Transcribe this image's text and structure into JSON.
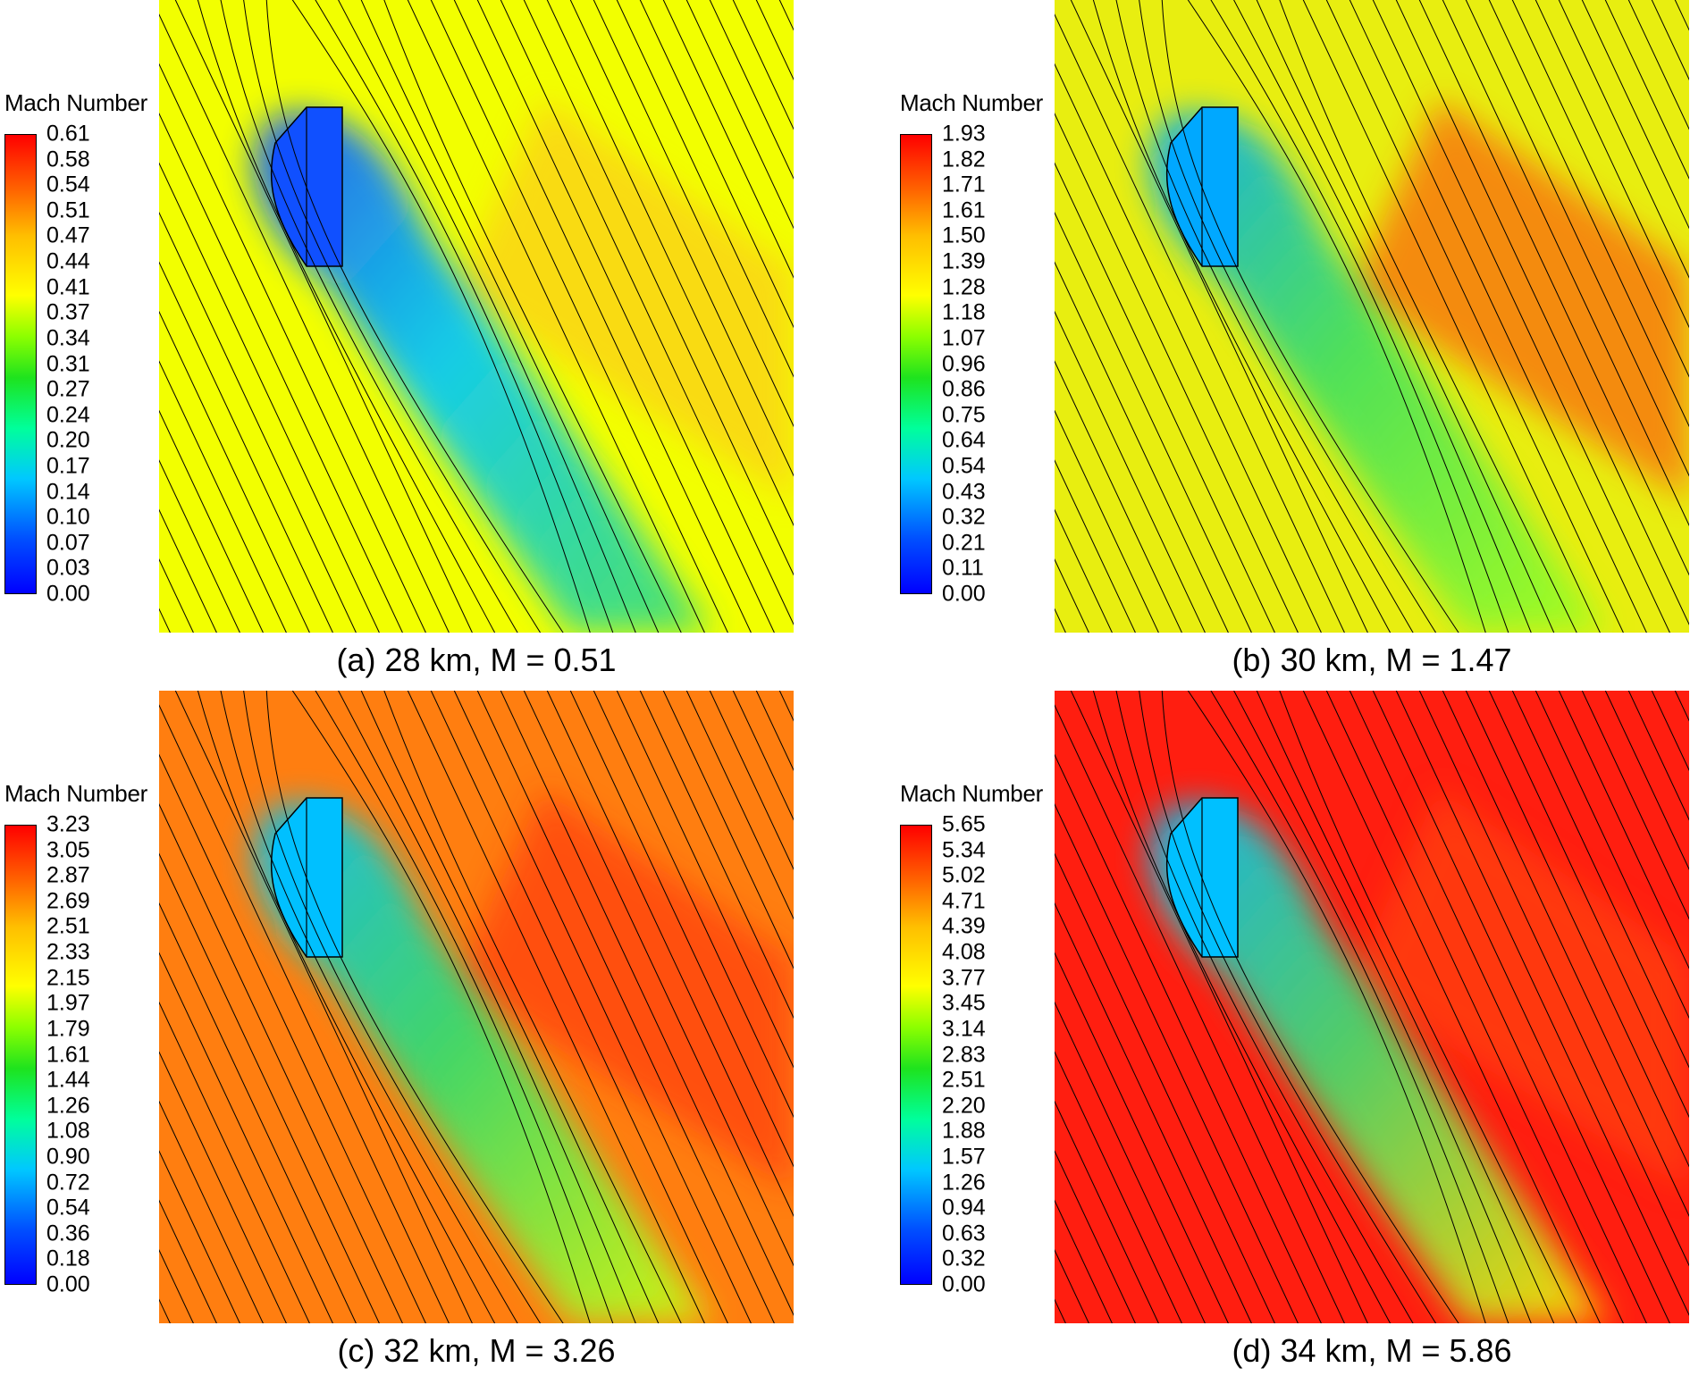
{
  "legend_title": "Mach Number",
  "panels": [
    {
      "caption": "(a) 28 km, M = 0.51",
      "ticks": [
        "0.61",
        "0.58",
        "0.54",
        "0.51",
        "0.47",
        "0.44",
        "0.41",
        "0.37",
        "0.34",
        "0.31",
        "0.27",
        "0.24",
        "0.20",
        "0.17",
        "0.14",
        "0.10",
        "0.07",
        "0.03",
        "0.00"
      ],
      "background": "#f2ff00",
      "wake": [
        "#1050ff",
        "#00c8ff",
        "#40e070"
      ],
      "side": "#ffbe20"
    },
    {
      "caption": "(b) 30 km, M = 1.47",
      "ticks": [
        "1.93",
        "1.82",
        "1.71",
        "1.61",
        "1.50",
        "1.39",
        "1.28",
        "1.18",
        "1.07",
        "0.96",
        "0.86",
        "0.75",
        "0.64",
        "0.54",
        "0.43",
        "0.32",
        "0.21",
        "0.11",
        "0.00"
      ],
      "background": "#e8ee10",
      "wake": [
        "#00a8ff",
        "#40e060",
        "#a0ff20"
      ],
      "side": "#ff3a10"
    },
    {
      "caption": "(c) 32 km, M = 3.26",
      "ticks": [
        "3.23",
        "3.05",
        "2.87",
        "2.69",
        "2.51",
        "2.33",
        "2.15",
        "1.97",
        "1.79",
        "1.61",
        "1.44",
        "1.26",
        "1.08",
        "0.90",
        "0.72",
        "0.54",
        "0.36",
        "0.18",
        "0.00"
      ],
      "background": "#ff7e10",
      "wake": [
        "#00c0ff",
        "#30e070",
        "#d0ff10"
      ],
      "side": "#ff2a10"
    },
    {
      "caption": "(d) 34 km, M = 5.86",
      "ticks": [
        "5.65",
        "5.34",
        "5.02",
        "4.71",
        "4.39",
        "4.08",
        "3.77",
        "3.45",
        "3.14",
        "2.83",
        "2.51",
        "2.20",
        "1.88",
        "1.57",
        "1.26",
        "0.94",
        "0.63",
        "0.32",
        "0.00"
      ],
      "background": "#ff1e10",
      "wake": [
        "#00c0ff",
        "#40e070",
        "#ffe800"
      ],
      "side": "#ff5010"
    }
  ]
}
